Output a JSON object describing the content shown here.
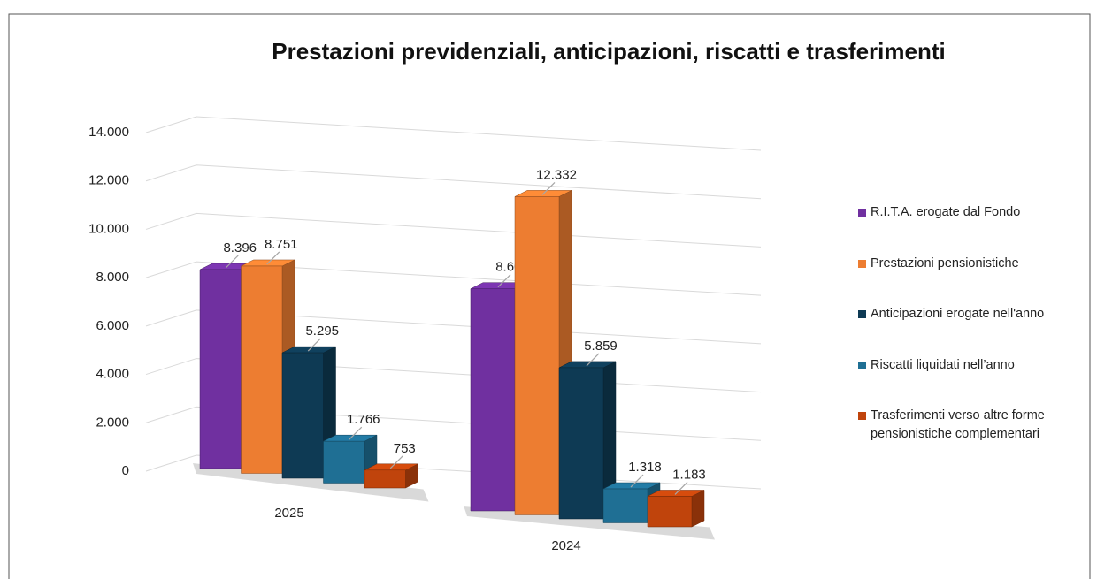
{
  "chart_data": {
    "type": "bar3d",
    "title": "Prestazioni previdenziali, anticipazioni,  riscatti e trasferimenti",
    "categories": [
      "2025",
      "2024"
    ],
    "series": [
      {
        "name": "R.I.T.A. erogate dal Fondo",
        "color": "#7030a0",
        "values": [
          8396,
          8606
        ],
        "value_labels": [
          "8.396",
          "8.606"
        ]
      },
      {
        "name": "Prestazioni pensionistiche",
        "color": "#ed7d31",
        "values": [
          8751,
          12332
        ],
        "value_labels": [
          "8.751",
          "12.332"
        ]
      },
      {
        "name": "Anticipazioni erogate nell'anno",
        "color": "#0e3a54",
        "values": [
          5295,
          5859
        ],
        "value_labels": [
          "5.295",
          "5.859"
        ]
      },
      {
        "name": "Riscatti liquidati nell’anno",
        "color": "#1f6f94",
        "values": [
          1766,
          1318
        ],
        "value_labels": [
          "1.766",
          "1.318"
        ]
      },
      {
        "name": "Trasferimenti verso altre forme pensionistiche complementari",
        "color": "#c0440c",
        "values": [
          753,
          1183
        ],
        "value_labels": [
          "753",
          "1.183"
        ]
      }
    ],
    "ylim": [
      0,
      14000
    ],
    "yticks": [
      0,
      {
        "value": 2000,
        "label": "2.000"
      },
      {
        "value": 4000,
        "label": "4.000"
      },
      {
        "value": 6000,
        "label": "6.000"
      },
      {
        "value": 8000,
        "label": "8.000"
      },
      {
        "value": 10000,
        "label": "10.000"
      },
      {
        "value": 12000,
        "label": "12.000"
      },
      {
        "value": 14000,
        "label": "14.000"
      }
    ],
    "grid": true,
    "legend": "right"
  }
}
